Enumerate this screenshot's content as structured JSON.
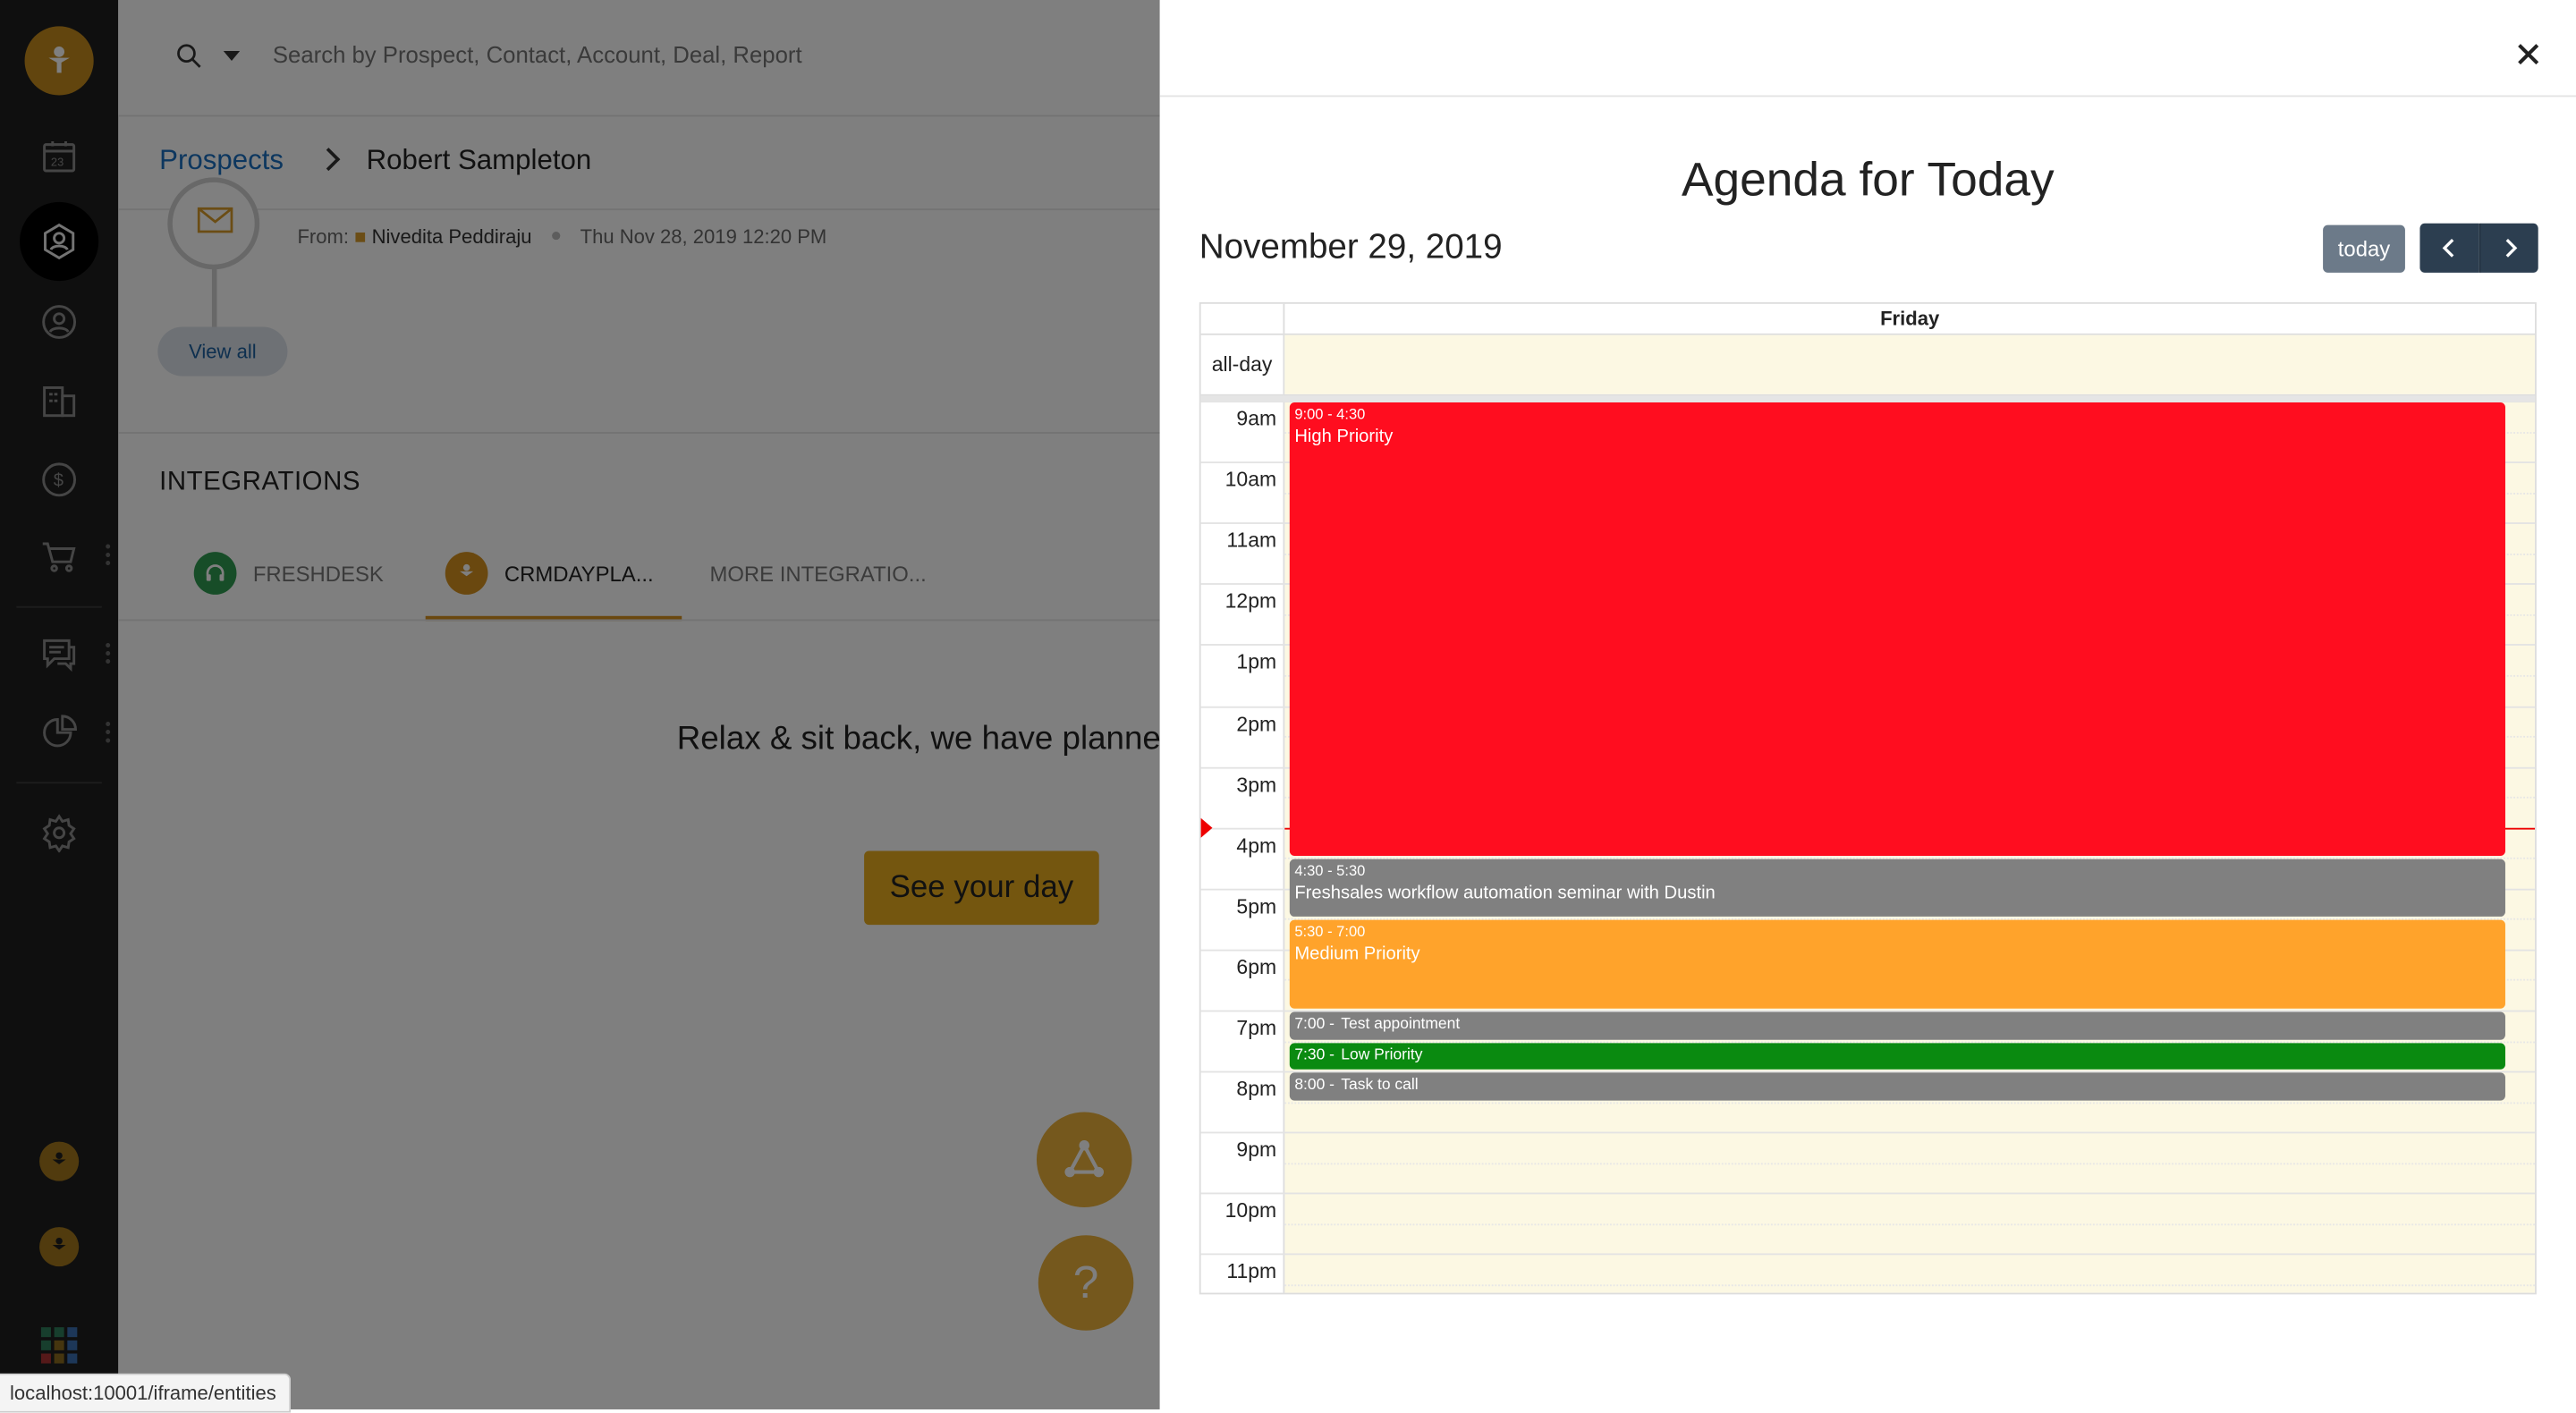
{
  "search": {
    "placeholder": "Search by Prospect, Contact, Account, Deal, Report"
  },
  "breadcrumb": {
    "parent": "Prospects",
    "current": "Robert Sampleton"
  },
  "activity": {
    "from_label": "From:",
    "from_name": "Nivedita Peddiraju",
    "timestamp": "Thu Nov 28, 2019 12:20 PM",
    "view_all": "View all"
  },
  "integrations": {
    "title": "INTEGRATIONS",
    "tabs": [
      {
        "label": "FRESHDESK",
        "active": false
      },
      {
        "label": "CRMDAYPLA...",
        "active": true
      },
      {
        "label": "MORE INTEGRATIO...",
        "active": false
      }
    ],
    "message": "Relax & sit back, we have planned",
    "cta": "See your day"
  },
  "help_fab": "?",
  "status_url": "localhost:10001/iframe/entities",
  "agenda": {
    "title": "Agenda for Today",
    "date": "November 29, 2019",
    "today_button": "today",
    "day_header": "Friday",
    "allday_label": "all-day",
    "hours": [
      "9am",
      "10am",
      "11am",
      "12pm",
      "1pm",
      "2pm",
      "3pm",
      "4pm",
      "5pm",
      "6pm",
      "7pm",
      "8pm",
      "9pm",
      "10pm",
      "11pm"
    ],
    "events": [
      {
        "time": "9:00 - 4:30",
        "name": "High Priority",
        "start": 9.0,
        "end": 16.5,
        "color": "#ff0d1f"
      },
      {
        "time": "4:30 - 5:30",
        "name": "Freshsales workflow automation seminar with Dustin",
        "start": 16.5,
        "end": 17.5,
        "color": "#808080"
      },
      {
        "time": "5:30 - 7:00",
        "name": "Medium Priority",
        "start": 17.5,
        "end": 19.0,
        "color": "#ffa32b"
      },
      {
        "time": "7:00 -",
        "name": "Test appointment",
        "start": 19.0,
        "end": 19.5,
        "color": "#808080"
      },
      {
        "time": "7:30 -",
        "name": "Low Priority",
        "start": 19.5,
        "end": 20.0,
        "color": "#0a8a10"
      },
      {
        "time": "8:00 -",
        "name": "Task to call",
        "start": 20.0,
        "end": 20.5,
        "color": "#808080"
      }
    ],
    "now_hour": 16.0
  },
  "colors": {
    "accent": "#e9ad1e",
    "nav_bg": "#1f1f1f",
    "cal_bg": "#fcf8e3",
    "button_dark": "#2c3e50"
  }
}
